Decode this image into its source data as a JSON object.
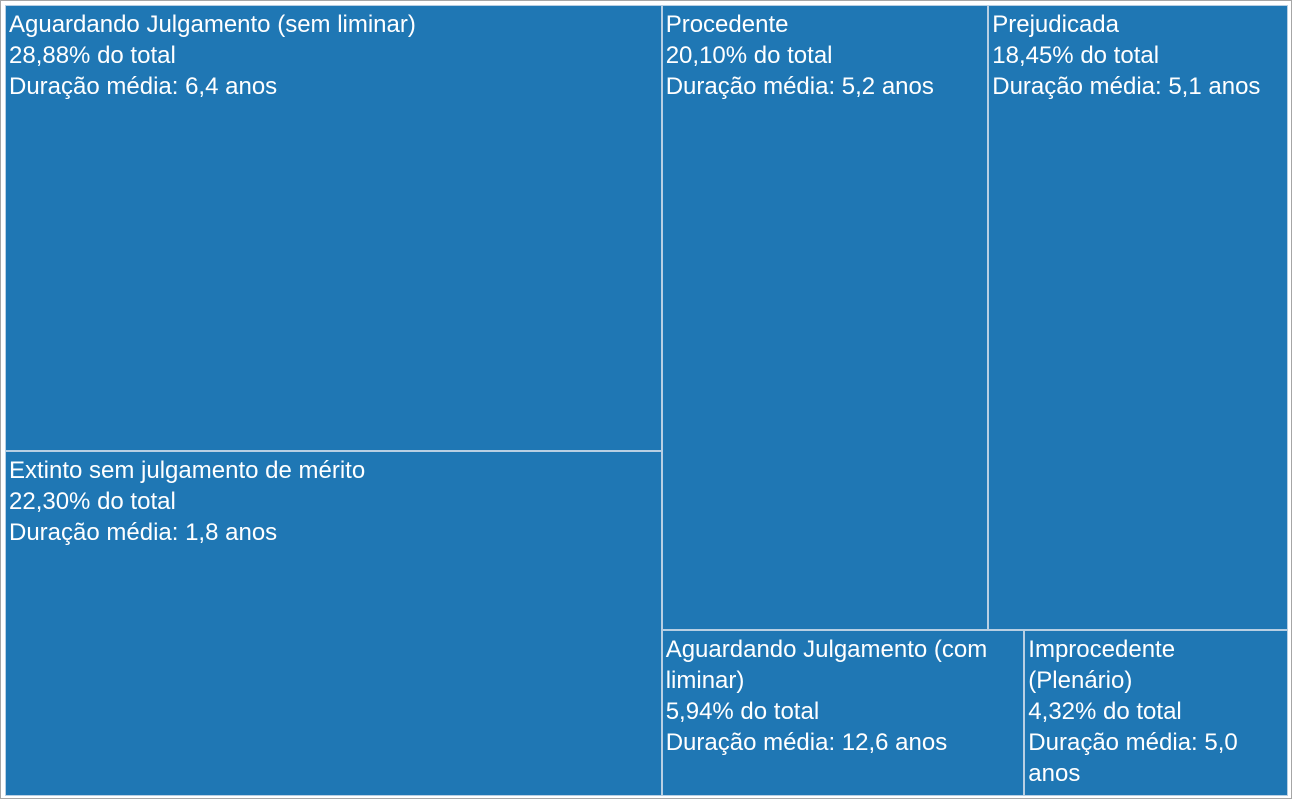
{
  "chart_data": {
    "type": "treemap",
    "color": "#1f77b4",
    "duration_prefix": "Duração média:",
    "items": [
      {
        "label": "Aguardando Julgamento (sem liminar)",
        "share_text": "28,88% do total",
        "duration_text": "Duração média: 6,4 anos",
        "share": 28.88,
        "duration_years": 6.4
      },
      {
        "label": "Extinto sem julgamento de mérito",
        "share_text": "22,30% do total",
        "duration_text": "Duração média: 1,8 anos",
        "share": 22.3,
        "duration_years": 1.8
      },
      {
        "label": "Procedente",
        "share_text": "20,10% do total",
        "duration_text": "Duração média: 5,2 anos",
        "share": 20.1,
        "duration_years": 5.2
      },
      {
        "label": "Prejudicada",
        "share_text": "18,45% do total",
        "duration_text": "Duração média: 5,1 anos",
        "share": 18.45,
        "duration_years": 5.1
      },
      {
        "label": "Aguardando Julgamento (com liminar)",
        "share_text": "5,94% do total",
        "duration_text": "Duração média: 12,6 anos",
        "share": 5.94,
        "duration_years": 12.6
      },
      {
        "label": "Improcedente (Plenário)",
        "share_text": "4,32% do total",
        "duration_text": "Duração média: 5,0 anos",
        "share": 4.32,
        "duration_years": 5.0
      }
    ]
  }
}
